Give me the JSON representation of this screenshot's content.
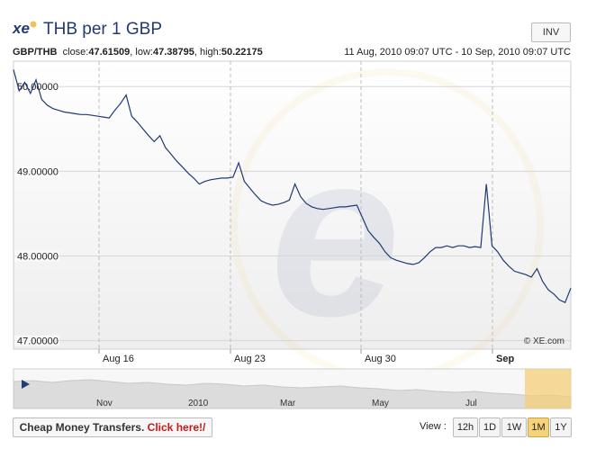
{
  "header": {
    "logo_text": "xe",
    "title": "THB per 1 GBP",
    "inv_label": "INV"
  },
  "info": {
    "pair": "GBP/THB",
    "close_label": "close:",
    "close_value": "47.61509",
    "low_label": "low:",
    "low_value": "47.38795",
    "high_label": "high:",
    "high_value": "50.22175",
    "date_range": "11 Aug, 2010 09:07 UTC - 10 Sep, 2010 09:07 UTC"
  },
  "watermark": "© XE.com",
  "footer": {
    "promo_text": "Cheap Money Transfers.",
    "promo_link": "Click here!/",
    "view_label": "View :",
    "view_buttons": [
      "12h",
      "1D",
      "1W",
      "1M",
      "1Y"
    ],
    "active_view": "1M"
  },
  "colors": {
    "line": "#1f3a73",
    "accent": "#233a73",
    "active_button": "#f6d37a",
    "navigator_window": "#f3cf78"
  },
  "chart_data": {
    "type": "line",
    "title": "THB per 1 GBP",
    "xlabel": "",
    "ylabel": "",
    "x_ticks": [
      "Aug 16",
      "Aug 23",
      "Aug 30",
      "Sep"
    ],
    "y_ticks": [
      "47.00000",
      "48.00000",
      "49.00000",
      "50.00000"
    ],
    "ylim": [
      46.9,
      50.3
    ],
    "grid": true,
    "series": [
      {
        "values": [
          50.2,
          49.95,
          50.05,
          49.92,
          50.08,
          49.85,
          49.78,
          49.74,
          49.72,
          49.7,
          49.69,
          49.68,
          49.67,
          49.67,
          49.66,
          49.65,
          49.64,
          49.63,
          49.72,
          49.8,
          49.9,
          49.65,
          49.58,
          49.5,
          49.42,
          49.35,
          49.42,
          49.28,
          49.2,
          49.12,
          49.05,
          48.98,
          48.92,
          48.85,
          48.88,
          48.9,
          48.91,
          48.92,
          48.92,
          48.93,
          49.1,
          48.88,
          48.8,
          48.72,
          48.65,
          48.62,
          48.6,
          48.61,
          48.63,
          48.66,
          48.85,
          48.7,
          48.62,
          48.58,
          48.56,
          48.55,
          48.56,
          48.57,
          48.58,
          48.58,
          48.59,
          48.6,
          48.45,
          48.3,
          48.22,
          48.15,
          48.05,
          47.98,
          47.95,
          47.93,
          47.91,
          47.9,
          47.92,
          47.98,
          48.05,
          48.1,
          48.1,
          48.12,
          48.1,
          48.12,
          48.12,
          48.1,
          48.11,
          48.1,
          48.85,
          48.12,
          48.05,
          47.95,
          47.88,
          47.82,
          47.8,
          47.78,
          47.75,
          47.85,
          47.7,
          47.6,
          47.55,
          47.48,
          47.45,
          47.62
        ]
      }
    ]
  },
  "navigator": {
    "labels": [
      "Nov",
      "2010",
      "Mar",
      "May",
      "Jul"
    ]
  }
}
